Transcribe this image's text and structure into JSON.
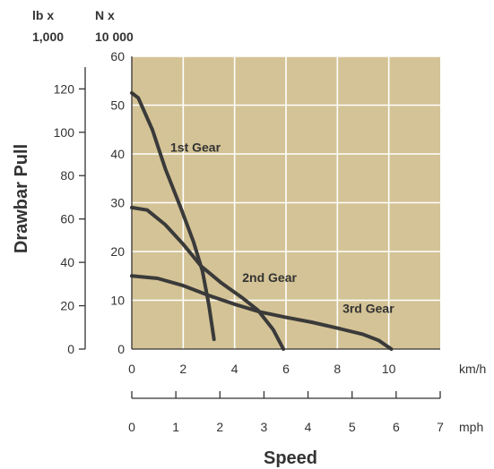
{
  "chart_data": {
    "type": "line",
    "title": "",
    "xlabel": "Speed",
    "ylabel": "Drawbar Pull",
    "plot_background": "#d4c396",
    "curve_color": "#3a3a3a",
    "grid": true,
    "x_kmh": {
      "unit": "km/h",
      "range": [
        0,
        12
      ],
      "ticks": [
        0,
        2,
        4,
        6,
        8,
        10
      ]
    },
    "x_mph": {
      "unit": "mph",
      "range": [
        0,
        7
      ],
      "ticks": [
        0,
        1,
        2,
        3,
        4,
        5,
        6,
        7
      ]
    },
    "y_n": {
      "header_line1": "N x",
      "header_line2": "10 000",
      "range": [
        0,
        60
      ],
      "ticks": [
        0,
        10,
        20,
        30,
        40,
        50,
        60
      ]
    },
    "y_lb": {
      "header_line1": "lb x",
      "header_line2": "1,000",
      "range": [
        0,
        135
      ],
      "ticks": [
        0,
        20,
        40,
        60,
        80,
        100,
        120
      ]
    },
    "series": [
      {
        "name": "1st Gear",
        "x_kmh": [
          0,
          0.25,
          0.8,
          1.3,
          1.9,
          2.4,
          2.75,
          3.0,
          3.2
        ],
        "y_n": [
          52.5,
          51.5,
          45,
          37,
          29,
          22,
          16,
          9,
          2
        ]
      },
      {
        "name": "2nd Gear",
        "x_kmh": [
          0,
          0.6,
          1.3,
          2.0,
          2.7,
          3.5,
          4.3,
          4.9,
          5.5,
          5.9
        ],
        "y_n": [
          29,
          28.5,
          25.5,
          21.5,
          17,
          13.5,
          10.5,
          8,
          4,
          0
        ]
      },
      {
        "name": "3rd Gear",
        "x_kmh": [
          0,
          1,
          2,
          3,
          4,
          5,
          6,
          7,
          8,
          9,
          9.6,
          10.1
        ],
        "y_n": [
          15,
          14.5,
          13,
          11,
          9.2,
          7.6,
          6.5,
          5.5,
          4.3,
          3,
          1.8,
          0
        ]
      }
    ],
    "annotations": [
      {
        "text": "1st Gear",
        "x_kmh": 1.5,
        "y_n": 40.5
      },
      {
        "text": "2nd Gear",
        "x_kmh": 4.3,
        "y_n": 13.8
      },
      {
        "text": "3rd Gear",
        "x_kmh": 8.2,
        "y_n": 7.4
      }
    ]
  }
}
